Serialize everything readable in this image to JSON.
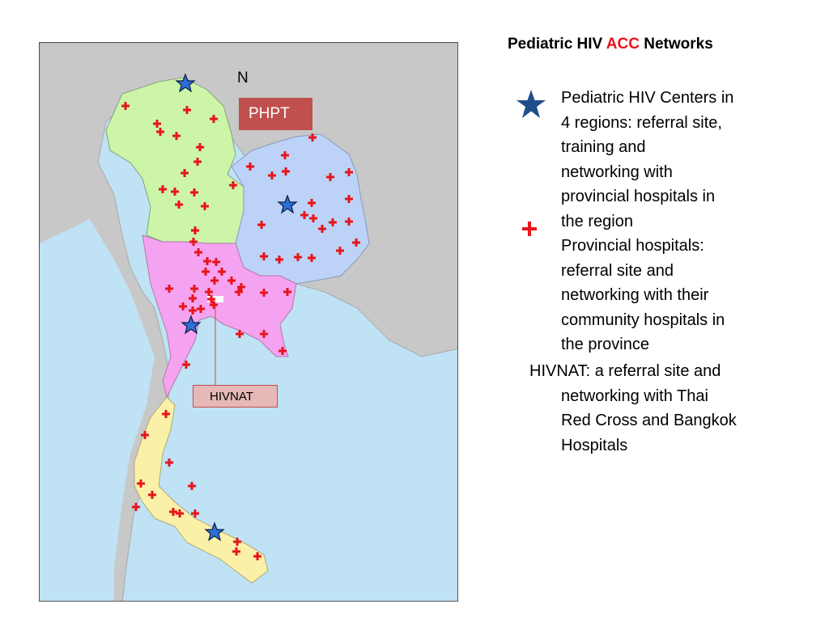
{
  "title": {
    "prefix": "Pediatric HIV ",
    "highlight": "ACC",
    "suffix": " Networks",
    "highlight_color": "#e8141b"
  },
  "map": {
    "north_label": "N",
    "phpt_label": "PHPT",
    "hivnat_label": "HIVNAT",
    "region_colors": {
      "north": "#ccf5a8",
      "northeast": "#bcd3f7",
      "central": "#f5a3f0",
      "south": "#faf0a8",
      "sea": "#bfe2f5",
      "land": "#c8c8c8"
    }
  },
  "legend": {
    "centers_icon": "star-icon",
    "centers_line1": "Pediatric HIV Centers in",
    "centers_line2": "4 regions: referral site,",
    "centers_line3": "training and",
    "centers_line4": "networking with",
    "centers_line5": "provincial hospitals in",
    "centers_line6": "the region",
    "provincial_icon": "red-cross-icon",
    "prov_line1": "Provincial hospitals:",
    "prov_line2": "referral site and",
    "prov_line3": "networking with their",
    "prov_line4": "community hospitals in",
    "prov_line5": "the province",
    "hivnat_line1": "HIVNAT: a referral site and",
    "hivnat_line2": "networking with Thai",
    "hivnat_line3": "Red Cross and Bangkok",
    "hivnat_line4": "Hospitals"
  }
}
